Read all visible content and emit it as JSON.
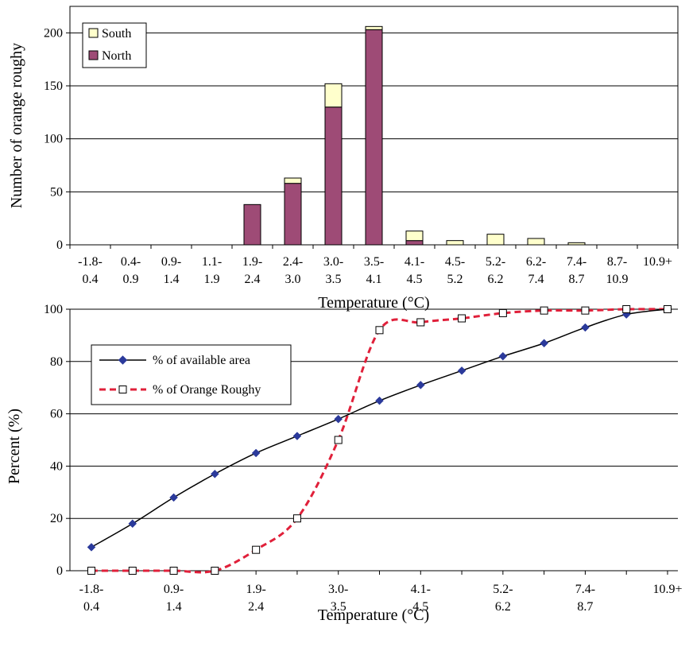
{
  "chart_data": [
    {
      "type": "bar",
      "stacked": true,
      "categories": [
        "-1.8- 0.4",
        "0.4- 0.9",
        "0.9- 1.4",
        "1.1- 1.9",
        "1.9- 2.4",
        "2.4- 3.0",
        "3.0- 3.5",
        "3.5- 4.1",
        "4.1- 4.5",
        "4.5- 5.2",
        "5.2- 6.2",
        "6.2- 7.4",
        "7.4- 8.7",
        "8.7- 10.9",
        "10.9+"
      ],
      "series": [
        {
          "name": "North",
          "color": "#9e4b76",
          "values": [
            0,
            0,
            0,
            0,
            38,
            58,
            130,
            203,
            4,
            0,
            0,
            0,
            0,
            0,
            0
          ]
        },
        {
          "name": "South",
          "color": "#ffffcc",
          "values": [
            0,
            0,
            0,
            0,
            0,
            5,
            22,
            3,
            9,
            4,
            10,
            6,
            2,
            0,
            0
          ]
        }
      ],
      "xlabel": "Temperature (°C)",
      "ylabel": "Number of orange roughy",
      "ylim": [
        0,
        225
      ],
      "yticks": [
        0,
        50,
        100,
        150,
        200
      ],
      "grid": true,
      "legend_position": "top-left",
      "legend_order": [
        "South",
        "North"
      ]
    },
    {
      "type": "line",
      "categories": [
        "-1.8- 0.4",
        "0.4- 0.9",
        "0.9- 1.4",
        "1.1- 1.9",
        "1.9- 2.4",
        "2.4- 3.0",
        "3.0- 3.5",
        "3.5- 4.1",
        "4.1- 4.5",
        "4.5- 5.2",
        "5.2- 6.2",
        "6.2- 7.4",
        "7.4- 8.7",
        "8.7- 10.9",
        "10.9+"
      ],
      "tick_labels": [
        "-1.8- 0.4",
        "0.9- 1.4",
        "1.9- 2.4",
        "3.0- 3.5",
        "4.1- 4.5",
        "5.2- 6.2",
        "7.4- 8.7",
        "10.9+"
      ],
      "series": [
        {
          "name": "% of available area",
          "color": "#2b3a9b",
          "line": "solid",
          "marker": "diamond",
          "values": [
            9,
            18,
            28,
            37,
            45,
            51.5,
            58,
            65,
            71,
            76.5,
            82,
            87,
            93,
            98,
            100
          ]
        },
        {
          "name": "% of Orange Roughy",
          "color": "#e0203a",
          "line": "dashed",
          "marker": "open-square",
          "values": [
            0,
            0,
            0,
            0,
            8,
            20,
            50,
            92,
            95,
            96.5,
            98.5,
            99.5,
            99.5,
            100,
            100
          ]
        }
      ],
      "xlabel": "Temperature (°C)",
      "ylabel": "Percent (%)",
      "ylim": [
        0,
        100
      ],
      "yticks": [
        0,
        20,
        40,
        60,
        80,
        100
      ],
      "grid": true,
      "legend_position": "top-left"
    }
  ]
}
